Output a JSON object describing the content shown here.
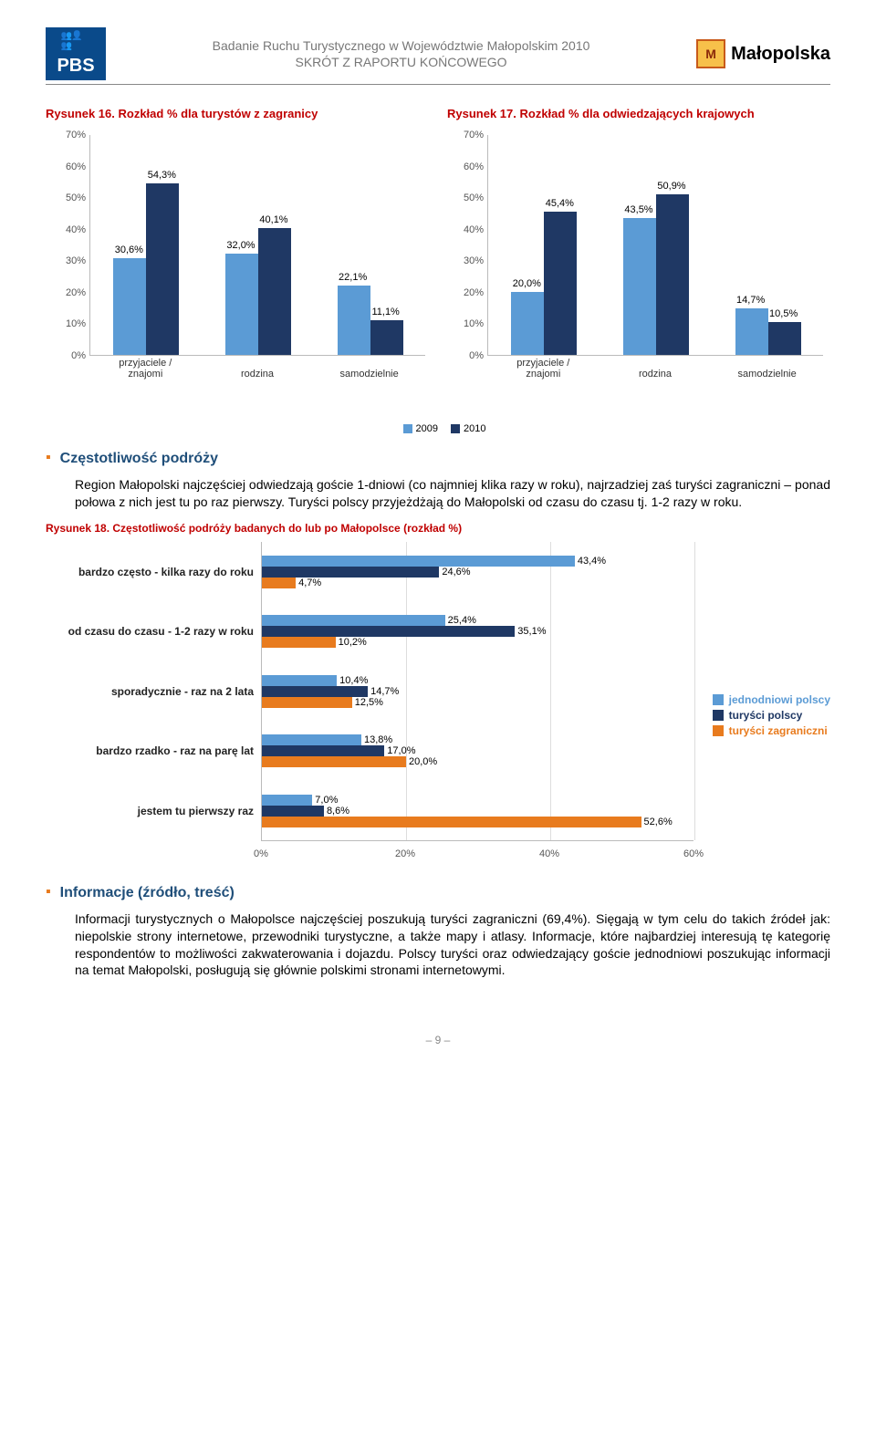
{
  "header": {
    "pbs": "PBS",
    "title_line1": "Badanie Ruchu Turystycznego w Województwie Małopolskim 2010",
    "title_line2": "SKRÓT Z RAPORTU KOŃCOWEGO",
    "malopolska": "Małopolska",
    "malopolska_icon": "M"
  },
  "chart16": {
    "title": "Rysunek 16. Rozkład % dla turystów z zagranicy",
    "ymax": 70,
    "ytick_step": 10,
    "categories": [
      "przyjaciele /\nznajomi",
      "rodzina",
      "samodzielnie"
    ],
    "series": [
      {
        "name": "2009",
        "color": "#5b9bd5",
        "values": [
          30.6,
          32.0,
          22.1
        ],
        "labels": [
          "30,6%",
          "32,0%",
          "22,1%"
        ]
      },
      {
        "name": "2010",
        "color": "#1f3864",
        "values": [
          54.3,
          40.1,
          11.1
        ],
        "labels": [
          "54,3%",
          "40,1%",
          "11,1%"
        ]
      }
    ]
  },
  "chart17": {
    "title": "Rysunek 17. Rozkład % dla odwiedzających krajowych",
    "ymax": 70,
    "ytick_step": 10,
    "categories": [
      "przyjaciele /\nznajomi",
      "rodzina",
      "samodzielnie"
    ],
    "series": [
      {
        "name": "2009",
        "color": "#5b9bd5",
        "values": [
          20.0,
          43.5,
          14.7
        ],
        "labels": [
          "20,0%",
          "43,5%",
          "14,7%"
        ]
      },
      {
        "name": "2010",
        "color": "#1f3864",
        "values": [
          45.4,
          50.9,
          10.5
        ],
        "labels": [
          "45,4%",
          "50,9%",
          "10,5%"
        ]
      }
    ]
  },
  "section1": {
    "title": "Częstotliwość podróży",
    "body": "Region Małopolski najczęściej odwiedzają goście 1-dniowi (co najmniej klika razy w roku), najrzadziej zaś turyści zagraniczni – ponad połowa z nich jest tu po raz pierwszy. Turyści polscy przyjeżdżają do Małopolski od czasu do czasu tj. 1-2 razy w roku."
  },
  "chart18": {
    "caption": "Rysunek 18. Częstotliwość podróży badanych do lub po Małopolsce (rozkład %)",
    "xmax": 60,
    "xtick_step": 20,
    "categories": [
      "bardzo często - kilka razy do\nroku",
      "od czasu do czasu - 1-2 razy w\nroku",
      "sporadycznie - raz na 2 lata",
      "bardzo rzadko - raz na parę lat",
      "jestem tu pierwszy raz"
    ],
    "series": [
      {
        "name": "jednodniowi polscy",
        "color": "#5b9bd5",
        "values": [
          43.4,
          25.4,
          10.4,
          13.8,
          7.0
        ],
        "labels": [
          "43,4%",
          "25,4%",
          "10,4%",
          "13,8%",
          "7,0%"
        ]
      },
      {
        "name": "turyści polscy",
        "color": "#1f3864",
        "values": [
          24.6,
          35.1,
          14.7,
          17.0,
          8.6
        ],
        "labels": [
          "24,6%",
          "35,1%",
          "14,7%",
          "17,0%",
          "8,6%"
        ]
      },
      {
        "name": "turyści zagraniczni",
        "color": "#e87b1e",
        "values": [
          4.7,
          10.2,
          12.5,
          20.0,
          52.6
        ],
        "labels": [
          "4,7%",
          "10,2%",
          "12,5%",
          "20,0%",
          "52,6%"
        ]
      }
    ]
  },
  "section2": {
    "title": "Informacje (źródło, treść)",
    "body": "Informacji turystycznych o Małopolsce najczęściej poszukują turyści zagraniczni (69,4%). Sięgają w tym celu do takich źródeł jak: niepolskie strony internetowe, przewodniki turystyczne, a także mapy i atlasy. Informacje, które najbardziej interesują tę kategorię respondentów to możliwości zakwaterowania i dojazdu. Polscy turyści oraz odwiedzający goście jednodniowi poszukując informacji na temat Małopolski, posługują się głównie polskimi stronami internetowymi."
  },
  "footer": {
    "page": "– 9 –"
  }
}
